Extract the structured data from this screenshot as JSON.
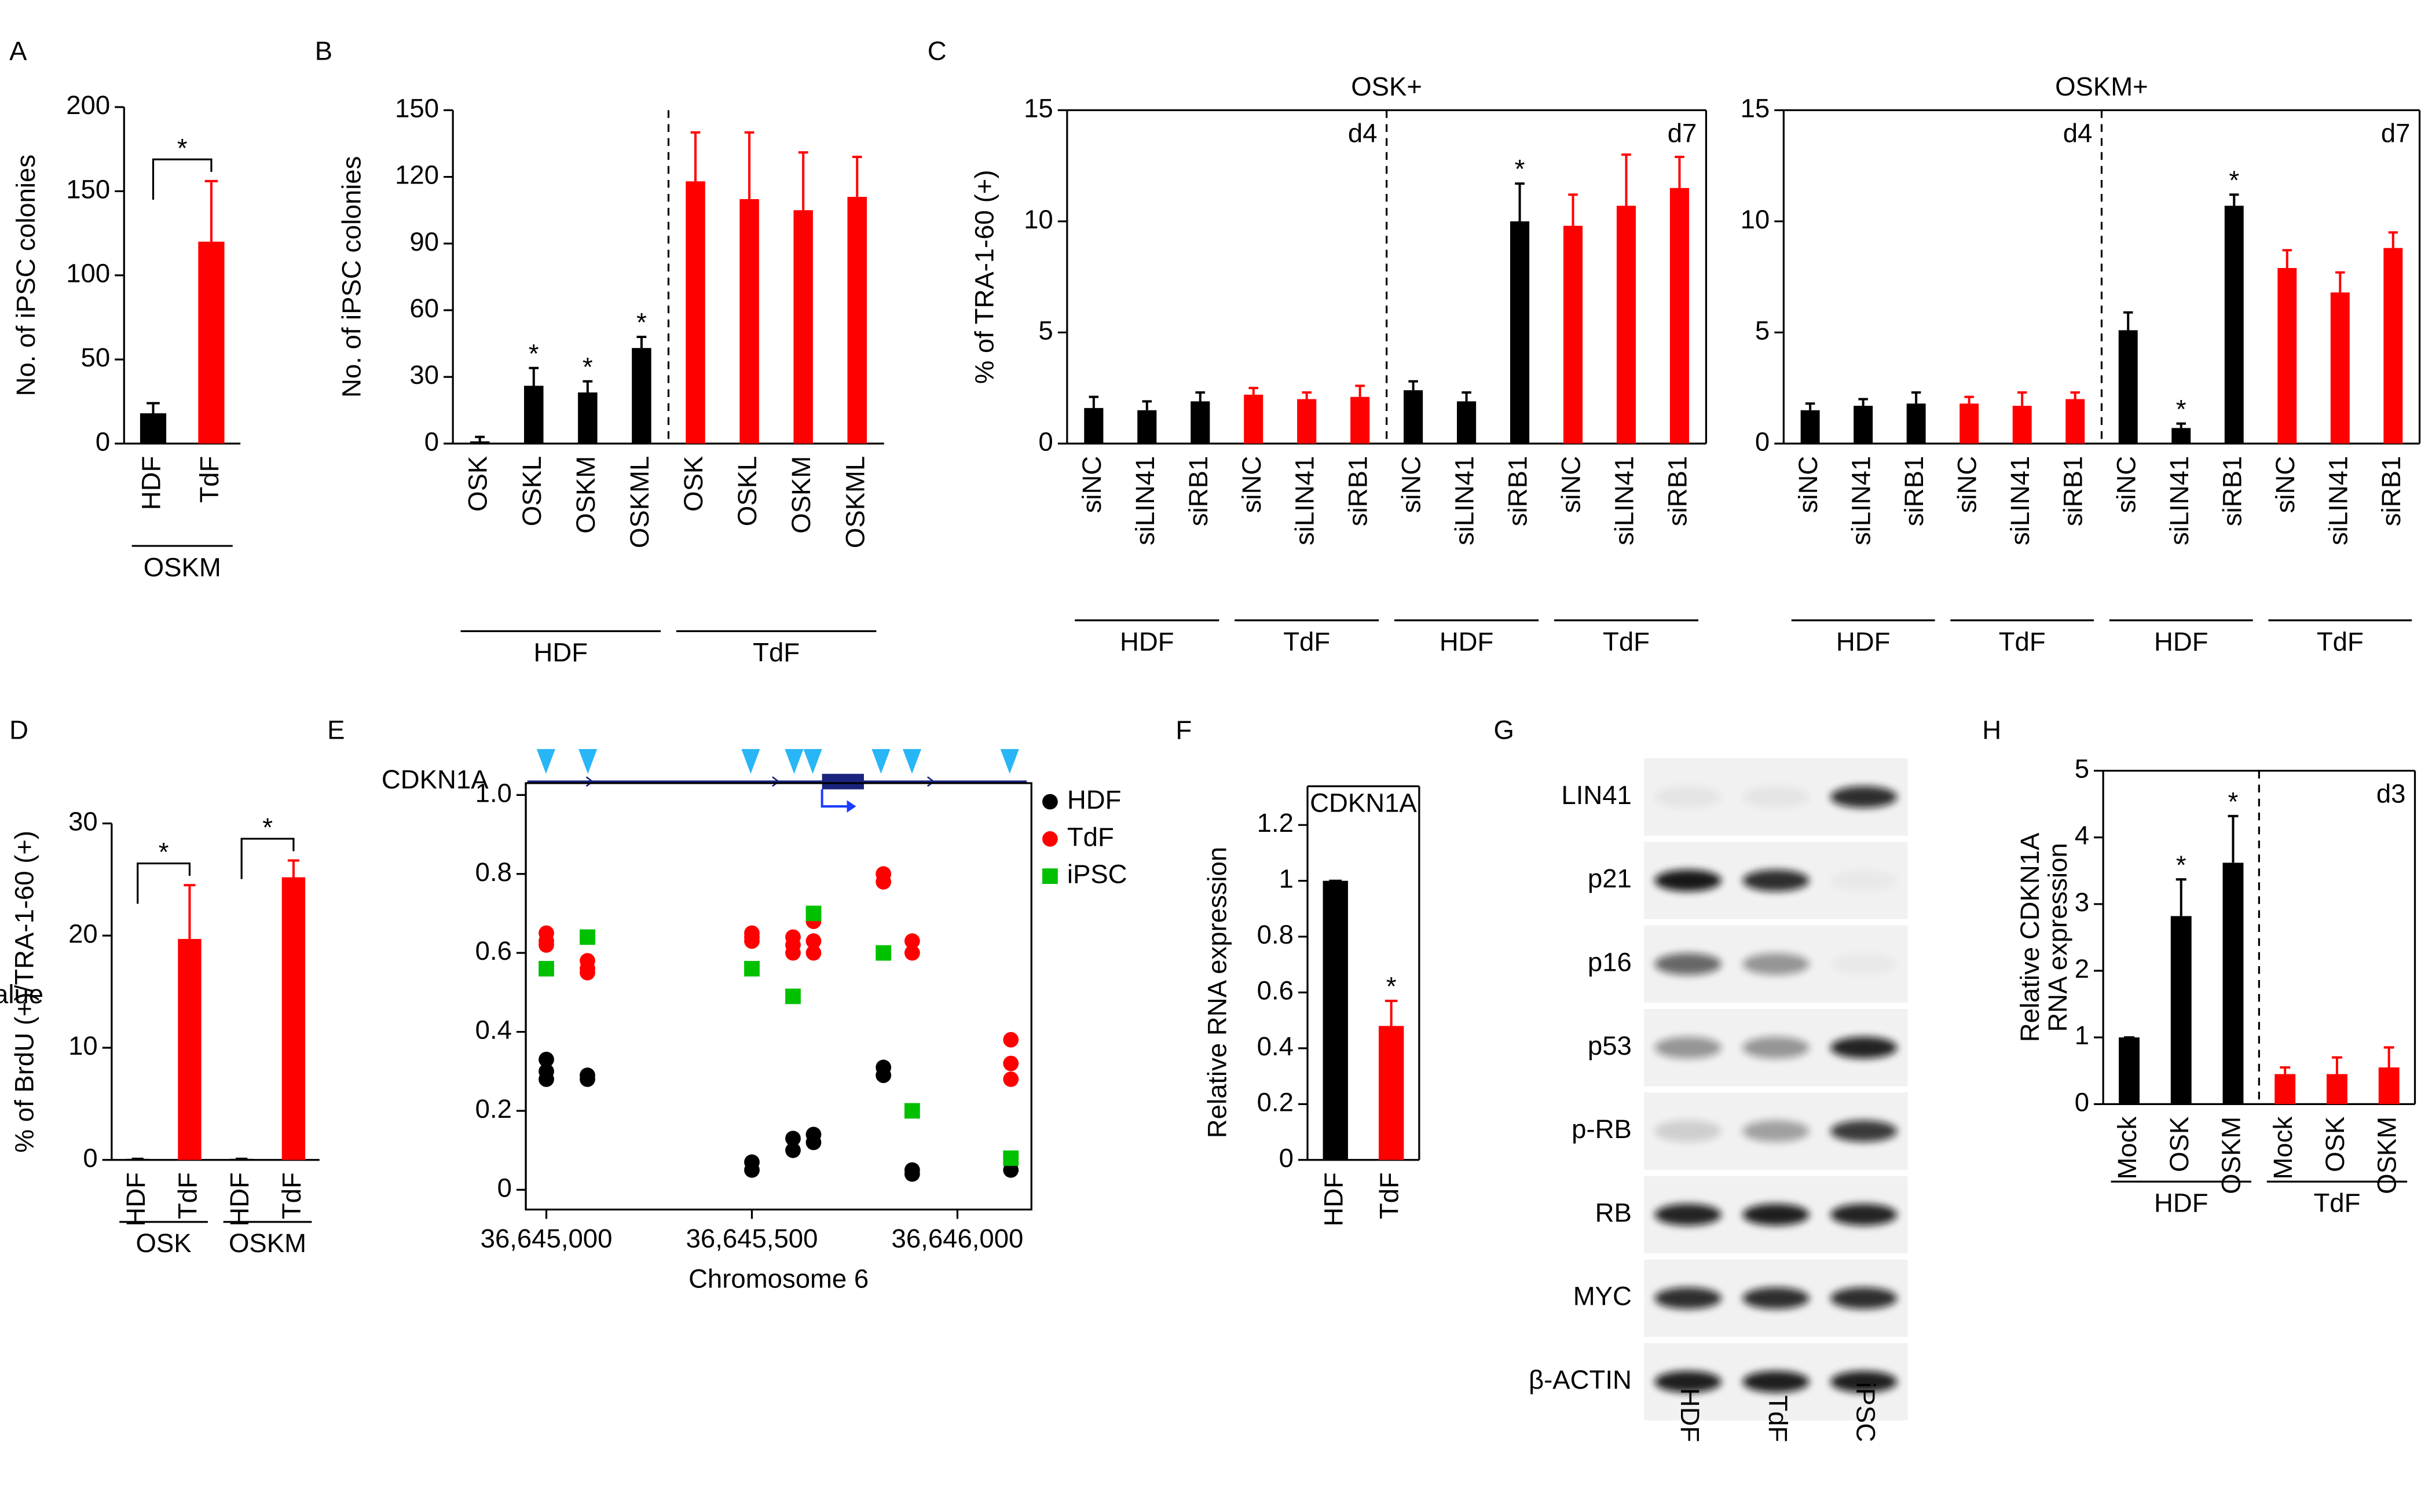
{
  "chart_data": [
    {
      "type": "bar",
      "panel": "A",
      "ylabel": "No. of iPSC colonies",
      "categories": [
        "HDF",
        "TdF"
      ],
      "values": [
        18,
        120
      ],
      "errors": [
        6,
        36
      ],
      "colors": [
        "#000000",
        "#ff0000"
      ],
      "significance": [
        null,
        "*"
      ],
      "bracket": true,
      "groups": [
        "OSKM"
      ],
      "ylim": [
        0,
        200
      ],
      "yticks": [
        0,
        50,
        100,
        150,
        200
      ]
    },
    {
      "type": "bar",
      "panel": "B",
      "ylabel": "No. of iPSC colonies",
      "categories": [
        "OSK",
        "OSKL",
        "OSKM",
        "OSKML",
        "OSK",
        "OSKL",
        "OSKM",
        "OSKML"
      ],
      "values": [
        1,
        26,
        23,
        43,
        118,
        110,
        105,
        111
      ],
      "errors": [
        2,
        8,
        5,
        5,
        22,
        30,
        26,
        18
      ],
      "colors": [
        "#000000",
        "#000000",
        "#000000",
        "#000000",
        "#ff0000",
        "#ff0000",
        "#ff0000",
        "#ff0000"
      ],
      "significance": [
        null,
        "*",
        "*",
        "*",
        null,
        null,
        null,
        null
      ],
      "groups": [
        "HDF",
        "TdF"
      ],
      "divider": true,
      "ylim": [
        0,
        150
      ],
      "yticks": [
        0,
        30,
        60,
        90,
        120,
        150
      ]
    },
    {
      "type": "bar",
      "panel": "C",
      "title": "OSK+",
      "ylabel": "% of TRA-1-60 (+)",
      "categories": [
        "siNC",
        "siLIN41",
        "siRB1",
        "siNC",
        "siLIN41",
        "siRB1",
        "siNC",
        "siLIN41",
        "siRB1",
        "siNC",
        "siLIN41",
        "siRB1"
      ],
      "values": [
        1.6,
        1.5,
        1.9,
        2.2,
        2.0,
        2.1,
        2.4,
        1.9,
        10.0,
        9.8,
        10.7,
        11.5
      ],
      "errors": [
        0.5,
        0.4,
        0.4,
        0.3,
        0.3,
        0.5,
        0.4,
        0.4,
        1.7,
        1.4,
        2.3,
        1.4
      ],
      "colors": [
        "#000000",
        "#000000",
        "#000000",
        "#ff0000",
        "#ff0000",
        "#ff0000",
        "#000000",
        "#000000",
        "#000000",
        "#ff0000",
        "#ff0000",
        "#ff0000"
      ],
      "significance": [
        null,
        null,
        null,
        null,
        null,
        null,
        null,
        null,
        "*",
        null,
        null,
        null
      ],
      "groups": [
        "HDF",
        "TdF",
        "HDF",
        "TdF"
      ],
      "divider": true,
      "phase_labels": [
        "d4",
        "d7"
      ],
      "ylim": [
        0,
        15
      ],
      "yticks": [
        0,
        5,
        10,
        15
      ]
    },
    {
      "type": "bar",
      "title": "OSKM+",
      "categories": [
        "siNC",
        "siLIN41",
        "siRB1",
        "siNC",
        "siLIN41",
        "siRB1",
        "siNC",
        "siLIN41",
        "siRB1",
        "siNC",
        "siLIN41",
        "siRB1"
      ],
      "values": [
        1.5,
        1.7,
        1.8,
        1.8,
        1.7,
        2.0,
        5.1,
        0.7,
        10.7,
        7.9,
        6.8,
        8.8
      ],
      "errors": [
        0.3,
        0.3,
        0.5,
        0.3,
        0.6,
        0.3,
        0.8,
        0.2,
        0.5,
        0.8,
        0.9,
        0.7
      ],
      "colors": [
        "#000000",
        "#000000",
        "#000000",
        "#ff0000",
        "#ff0000",
        "#ff0000",
        "#000000",
        "#000000",
        "#000000",
        "#ff0000",
        "#ff0000",
        "#ff0000"
      ],
      "significance": [
        null,
        null,
        null,
        null,
        null,
        null,
        null,
        "*",
        "*",
        null,
        null,
        null
      ],
      "groups": [
        "HDF",
        "TdF",
        "HDF",
        "TdF"
      ],
      "divider": true,
      "phase_labels": [
        "d4",
        "d7"
      ],
      "ylim": [
        0,
        15
      ],
      "yticks": [
        0,
        5,
        10,
        15
      ]
    },
    {
      "type": "bar",
      "panel": "D",
      "ylabel": "% of BrdU (+)/TRA-1-60 (+)",
      "categories": [
        "HDF",
        "TdF",
        "HDF",
        "TdF"
      ],
      "values": [
        0.1,
        19.7,
        0.1,
        25.2
      ],
      "errors": [
        0,
        4.8,
        0,
        1.5
      ],
      "colors": [
        "#000000",
        "#ff0000",
        "#000000",
        "#ff0000"
      ],
      "significance": [
        null,
        "*",
        null,
        "*"
      ],
      "bracket": true,
      "groups": [
        "OSK",
        "OSKM"
      ],
      "ylim": [
        0,
        30
      ],
      "yticks": [
        0,
        10,
        20,
        30
      ]
    },
    {
      "type": "scatter",
      "panel": "E",
      "gene": "CDKN1A",
      "xlabel": "Chromosome 6",
      "ylabel": "β-value",
      "xlim": [
        36644950,
        36646180
      ],
      "xticks": [
        {
          "value": 36645000,
          "label": "36,645,000"
        },
        {
          "value": 36645500,
          "label": "36,645,500"
        },
        {
          "value": 36646000,
          "label": "36,646,000"
        }
      ],
      "ylim": [
        -0.05,
        1.03
      ],
      "yticks": [
        0,
        0.2,
        0.4,
        0.6,
        0.8,
        {
          "value": 1,
          "label": "1.0"
        }
      ],
      "series": [
        {
          "name": "HDF",
          "color": "#000000",
          "marker": "circle",
          "x": [
            36645000,
            36645000,
            36645000,
            36645100,
            36645100,
            36645500,
            36645500,
            36645600,
            36645600,
            36645650,
            36645650,
            36645820,
            36645820,
            36645890,
            36645890,
            36646130,
            36646130
          ],
          "values": [
            0.33,
            0.3,
            0.28,
            0.29,
            0.28,
            0.07,
            0.05,
            0.13,
            0.1,
            0.14,
            0.12,
            0.31,
            0.29,
            0.05,
            0.04,
            0.05,
            0.08
          ]
        },
        {
          "name": "TdF",
          "color": "#ff0000",
          "marker": "circle",
          "x": [
            36645000,
            36645000,
            36645000,
            36645100,
            36645100,
            36645100,
            36645500,
            36645500,
            36645500,
            36645600,
            36645600,
            36645600,
            36645650,
            36645650,
            36645650,
            36645820,
            36645820,
            36645890,
            36645890,
            36646130,
            36646130,
            36646130
          ],
          "values": [
            0.65,
            0.63,
            0.62,
            0.58,
            0.56,
            0.55,
            0.65,
            0.64,
            0.63,
            0.64,
            0.62,
            0.6,
            0.68,
            0.63,
            0.6,
            0.8,
            0.78,
            0.63,
            0.6,
            0.38,
            0.32,
            0.28
          ]
        },
        {
          "name": "iPSC",
          "color": "#00c000",
          "marker": "square",
          "x": [
            36645000,
            36645100,
            36645500,
            36645600,
            36645650,
            36645820,
            36645890,
            36646130
          ],
          "values": [
            0.56,
            0.64,
            0.56,
            0.49,
            0.7,
            0.6,
            0.2,
            0.08
          ]
        }
      ]
    },
    {
      "type": "bar",
      "panel": "F",
      "title": "CDKN1A",
      "ylabel": "Relative RNA expression",
      "categories": [
        "HDF",
        "TdF"
      ],
      "values": [
        1,
        0.48
      ],
      "errors": [
        0,
        0.09
      ],
      "colors": [
        "#000000",
        "#ff0000"
      ],
      "significance": [
        null,
        "*"
      ],
      "ylim": [
        0,
        1.2
      ],
      "yticks": [
        0,
        0.2,
        0.4,
        0.6,
        0.8,
        1,
        1.2
      ]
    },
    {
      "type": "blot",
      "panel": "G",
      "rows": [
        "LIN41",
        "p21",
        "p16",
        "p53",
        "p-RB",
        "RB",
        "MYC",
        "β-ACTIN"
      ],
      "lanes": [
        "HDF",
        "TdF",
        "iPSC"
      ]
    },
    {
      "type": "bar",
      "panel": "H",
      "ylabel": [
        "Relative CDKN1A",
        "RNA expression"
      ],
      "categories": [
        "Mock",
        "OSK",
        "OSKM",
        "Mock",
        "OSK",
        "OSKM"
      ],
      "values": [
        1,
        2.82,
        3.62,
        0.45,
        0.45,
        0.55
      ],
      "errors": [
        0,
        0.55,
        0.7,
        0.1,
        0.25,
        0.3
      ],
      "colors": [
        "#000000",
        "#000000",
        "#000000",
        "#ff0000",
        "#ff0000",
        "#ff0000"
      ],
      "significance": [
        null,
        "*",
        "*",
        null,
        null,
        null
      ],
      "groups": [
        "HDF",
        "TdF"
      ],
      "divider": true,
      "phase_labels": [
        "d3"
      ],
      "ylim": [
        0,
        5
      ],
      "yticks": [
        0,
        1,
        2,
        3,
        4,
        5
      ]
    }
  ]
}
